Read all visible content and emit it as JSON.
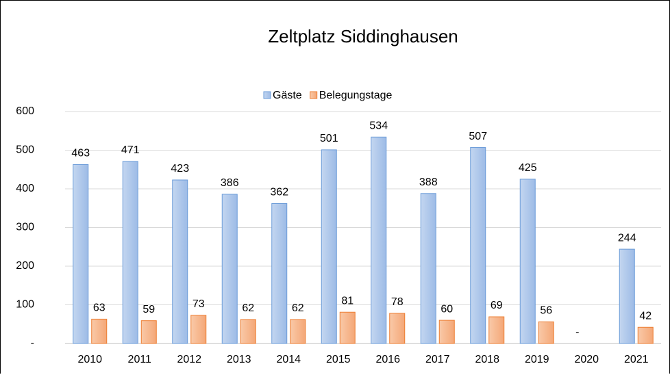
{
  "chart_data": {
    "type": "bar",
    "title": "Zeltplatz Siddinghausen",
    "categories": [
      "2010",
      "2011",
      "2012",
      "2013",
      "2014",
      "2015",
      "2016",
      "2017",
      "2018",
      "2019",
      "2020",
      "2021"
    ],
    "series": [
      {
        "name": "Gäste",
        "color": "#a9c4e8",
        "border": "#6a9bd8",
        "values": [
          463,
          471,
          423,
          386,
          362,
          501,
          534,
          388,
          507,
          425,
          0,
          244
        ],
        "value_labels": [
          "463",
          "471",
          "423",
          "386",
          "362",
          "501",
          "534",
          "388",
          "507",
          "425",
          "-",
          "244"
        ]
      },
      {
        "name": "Belegungstage",
        "color": "#f6b68c",
        "border": "#ed7d31",
        "values": [
          63,
          59,
          73,
          62,
          62,
          81,
          78,
          60,
          69,
          56,
          null,
          42
        ]
      }
    ],
    "ylim": [
      0,
      600
    ],
    "yticks": [
      {
        "value": 0,
        "label": "-"
      },
      100,
      200,
      300,
      400,
      500,
      600
    ],
    "grid": true,
    "legend": "top"
  }
}
